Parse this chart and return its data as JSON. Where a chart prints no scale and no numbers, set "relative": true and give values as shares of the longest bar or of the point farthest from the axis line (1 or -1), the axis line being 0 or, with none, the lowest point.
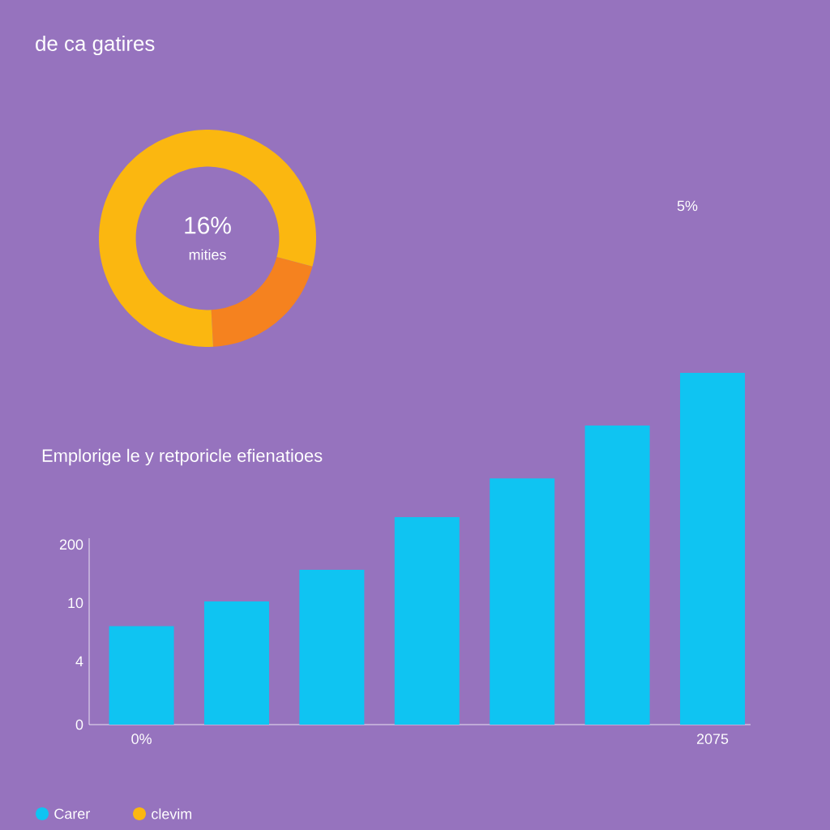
{
  "chart_data": [
    {
      "type": "donut",
      "title": "de ca gatires",
      "categories": [
        null,
        "clevim"
      ],
      "values": [
        20,
        80
      ],
      "colors": [
        "#f5821f",
        "#fbb710"
      ],
      "annotations": [
        "16%",
        "mities",
        "5%"
      ],
      "legend": "bottom"
    },
    {
      "type": "bar",
      "title": "Emplorige le y retporicle efienatioes",
      "categories": [
        "0%",
        null,
        null,
        null,
        null,
        null,
        "2075"
      ],
      "series": [
        {
          "name": "Carer",
          "color": "#0fc4f2",
          "values": [
            0.28,
            0.35,
            0.44,
            0.59,
            0.7,
            0.85,
            1
          ]
        }
      ],
      "relative": true,
      "annotations": [
        "0",
        "4",
        "10",
        "200"
      ],
      "legend": "bottom"
    }
  ]
}
